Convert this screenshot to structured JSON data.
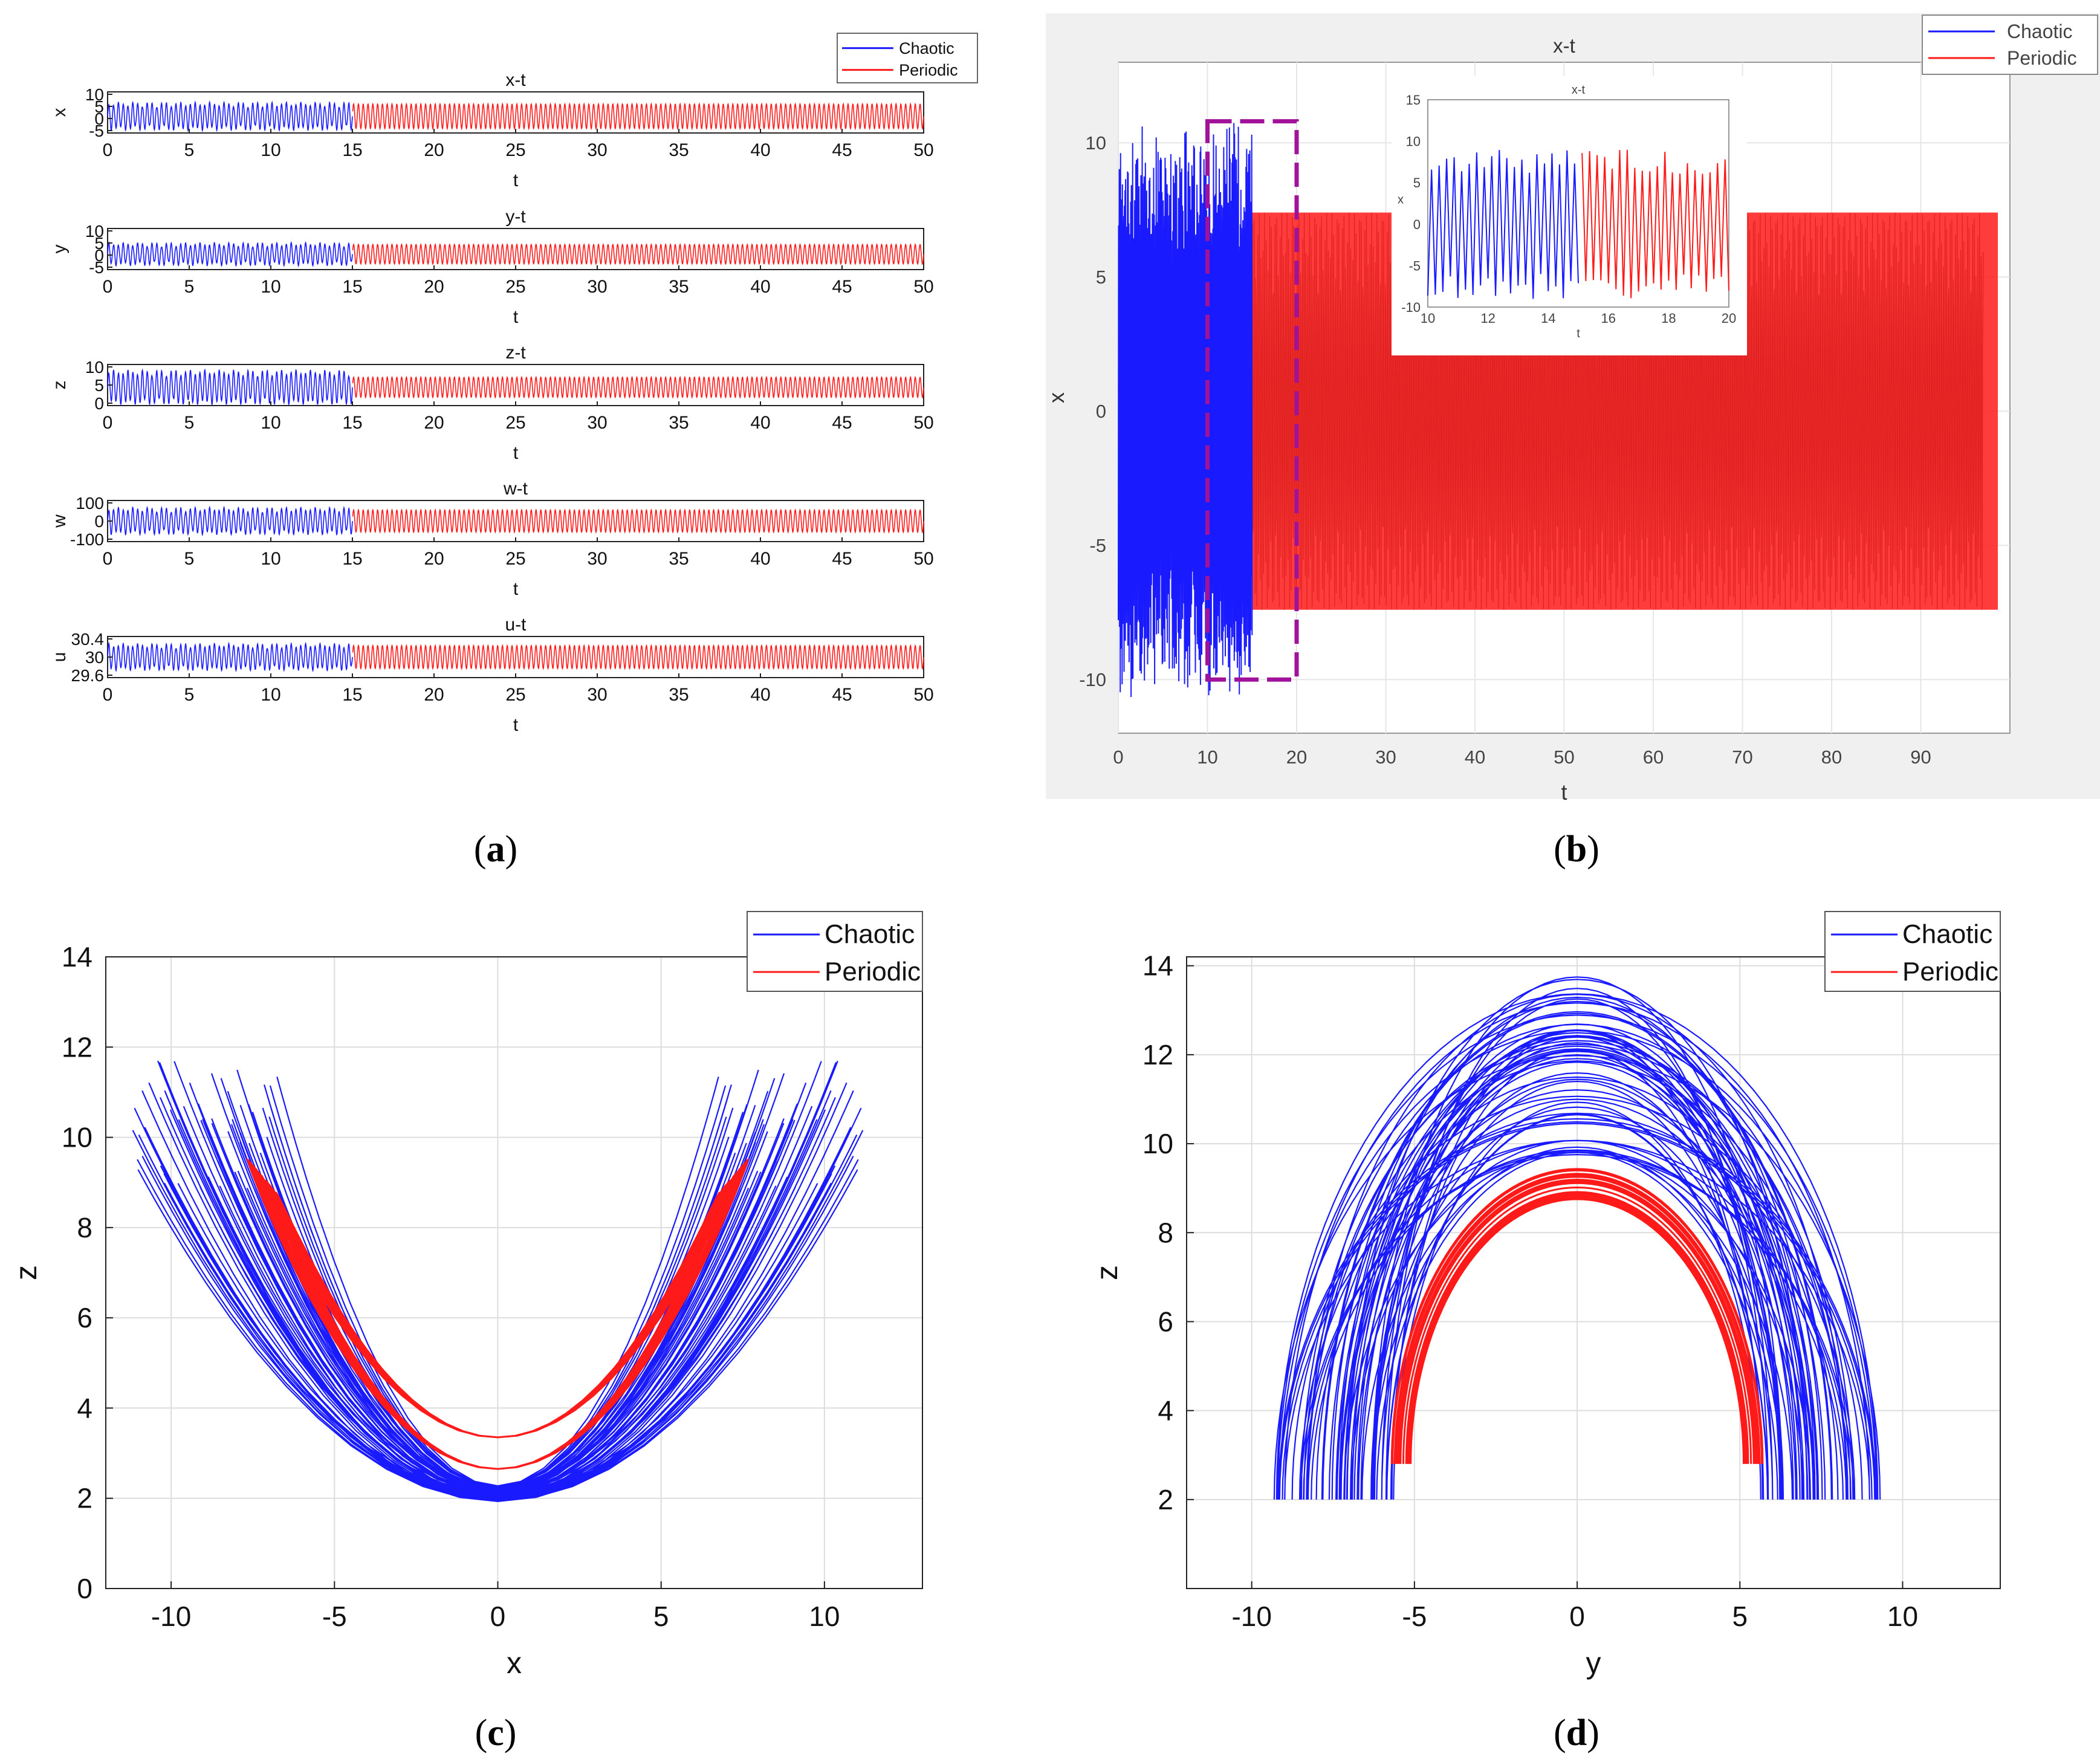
{
  "panel_labels": [
    {
      "open": "(",
      "letter": "a",
      "close": ")"
    },
    {
      "open": "(",
      "letter": "b",
      "close": ")"
    },
    {
      "open": "(",
      "letter": "c",
      "close": ")"
    },
    {
      "open": "(",
      "letter": "d",
      "close": ")"
    }
  ],
  "colors": {
    "chaotic": "#1a1aff",
    "periodic": "#ff1a1a",
    "highlight": "#a0129a",
    "axis": "#222222",
    "grid": "#dddddd",
    "panel_b_bg": "#f0f0f0"
  },
  "chart_data": [
    {
      "id": "a",
      "type": "line",
      "description_title": "Time series panels x-t, y-t, z-t, w-t, u-t",
      "legend": [
        "Chaotic",
        "Periodic"
      ],
      "legend_position": "top-right",
      "switch_t": 15,
      "xlim": [
        0,
        50
      ],
      "xticks": [
        0,
        5,
        10,
        15,
        20,
        25,
        30,
        35,
        40,
        45,
        50
      ],
      "xlabel": "t",
      "subplots": [
        {
          "title": "x-t",
          "ylabel": "x",
          "ylim": [
            -6,
            10
          ],
          "yticks": [
            "10",
            "5",
            "0",
            "-5"
          ],
          "chaotic_amp": 5.5,
          "periodic_amp": 4.8,
          "center": 0.5
        },
        {
          "title": "y-t",
          "ylabel": "y",
          "ylim": [
            -6,
            10
          ],
          "yticks": [
            "10",
            "5",
            "0",
            "-5"
          ],
          "chaotic_amp": 4.5,
          "periodic_amp": 3.8,
          "center": 0
        },
        {
          "title": "z-t",
          "ylabel": "z",
          "ylim": [
            0,
            13
          ],
          "yticks": [
            "10",
            "5",
            "0"
          ],
          "chaotic_amp": 5.5,
          "periodic_amp": 3.2,
          "center": 5.8
        },
        {
          "title": "w-t",
          "ylabel": "w",
          "ylim": [
            -120,
            120
          ],
          "yticks": [
            "100",
            "0",
            "-100"
          ],
          "chaotic_amp": 80,
          "periodic_amp": 65,
          "center": 0
        },
        {
          "title": "u-t",
          "ylabel": "u",
          "ylim": [
            29.5,
            30.5
          ],
          "yticks": [
            "30.4",
            "30",
            "29.6"
          ],
          "chaotic_amp": 0.33,
          "periodic_amp": 0.28,
          "center": 30
        }
      ]
    },
    {
      "id": "b",
      "type": "line",
      "title": "x-t",
      "xlabel": "t",
      "ylabel": "x",
      "legend": [
        "Chaotic",
        "Periodic"
      ],
      "legend_position": "top-right",
      "xlim": [
        0,
        100
      ],
      "ylim": [
        -12,
        13
      ],
      "xticks": [
        0,
        10,
        20,
        30,
        40,
        50,
        60,
        70,
        80,
        90
      ],
      "yticks": [
        10,
        5,
        0,
        -5,
        -10
      ],
      "switch_t": 15,
      "periodic_amp": 7.4,
      "highlight_box": {
        "t": [
          10,
          20
        ],
        "x": [
          -10,
          10.8
        ]
      },
      "inset": {
        "title": "x-t",
        "xlabel": "t",
        "ylabel": "x",
        "xlim": [
          10,
          20
        ],
        "ylim": [
          -10,
          15
        ],
        "xticks": [
          10,
          12,
          14,
          16,
          18,
          20
        ],
        "yticks": [
          15,
          10,
          5,
          0,
          -5,
          -10
        ]
      }
    },
    {
      "id": "c",
      "type": "line",
      "title": "",
      "xlabel": "x",
      "ylabel": "z",
      "legend": [
        "Chaotic",
        "Periodic"
      ],
      "legend_position": "top-right",
      "xlim": [
        -12,
        13
      ],
      "ylim": [
        0,
        14
      ],
      "xticks": [
        -10,
        -5,
        0,
        5,
        10
      ],
      "yticks": [
        0,
        2,
        4,
        6,
        8,
        10,
        12,
        14
      ],
      "grid": true
    },
    {
      "id": "d",
      "type": "line",
      "title": "",
      "xlabel": "y",
      "ylabel": "z",
      "legend": [
        "Chaotic",
        "Periodic"
      ],
      "legend_position": "top-right",
      "xlim": [
        -12,
        13
      ],
      "ylim": [
        0,
        14.2
      ],
      "xticks": [
        -10,
        -5,
        0,
        5,
        10
      ],
      "yticks": [
        2,
        4,
        6,
        8,
        10,
        12,
        14
      ],
      "grid": true
    }
  ]
}
